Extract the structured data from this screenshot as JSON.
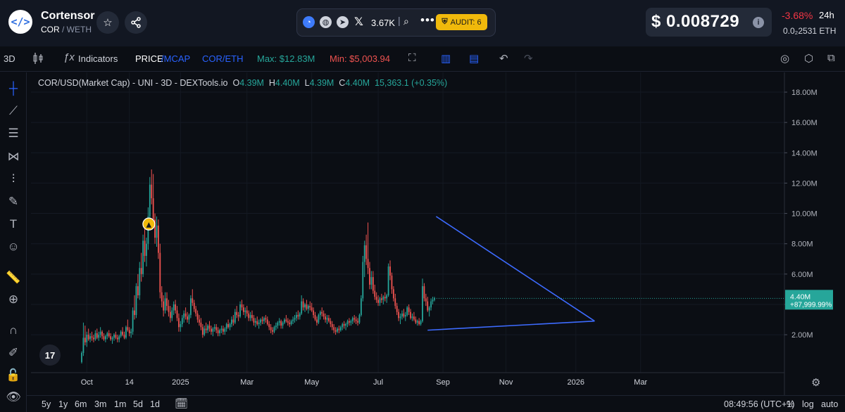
{
  "header": {
    "logo_glyph": "</>",
    "token_name": "Cortensor",
    "token_symbol": "COR",
    "pair_quote": "/ WETH",
    "favorite_icon": "star-icon",
    "share_icon": "share-icon",
    "social": {
      "x_followers": "3.67K",
      "separator": "|"
    },
    "audit_label": "AUDIT: 6",
    "price": "$ 0.008729",
    "price_change": "-3.68%",
    "change_period": "24h",
    "eth_price": "0.0₂2531 ETH"
  },
  "toolbar": {
    "interval": "3D",
    "indicators": "Indicators",
    "price_label": "PRICE",
    "mcap_label": "/MCAP",
    "pair_toggle": "COR/ETH",
    "max_label": "Max: $12.83M",
    "min_label": "Min: $5,003.94"
  },
  "legend": {
    "symbol": "COR/USD(Market Cap) - UNI - 3D - DEXTools.io",
    "o_label": "O",
    "o": "4.39M",
    "h_label": "H",
    "h": "4.40M",
    "l_label": "L",
    "l": "4.39M",
    "c_label": "C",
    "c": "4.40M",
    "extra": "15,363.1 (+0.35%)"
  },
  "last_price_tag": {
    "value": "4.40M",
    "change": "+87,999.99%"
  },
  "colors": {
    "up": "#26a69a",
    "down": "#ef5350",
    "trendline": "#3d6bff",
    "accent": "#2962ff",
    "audit": "#f0b90b"
  },
  "bottom": {
    "ranges": [
      "5y",
      "1y",
      "6m",
      "3m",
      "1m",
      "5d",
      "1d"
    ],
    "clock": "08:49:56 (UTC+1)",
    "percent": "%",
    "log": "log",
    "auto": "auto"
  },
  "chart_data": {
    "type": "candlestick",
    "y_unit": "USD market cap (millions)",
    "y_ticks": [
      "18.00M",
      "16.00M",
      "14.00M",
      "12.00M",
      "10.00M",
      "8.00M",
      "6.00M",
      "4.00M",
      "2.00M"
    ],
    "y_tick_values": [
      18,
      16,
      14,
      12,
      10,
      8,
      6,
      4,
      2
    ],
    "ylim": [
      -0.5,
      19.3
    ],
    "x_ticks": [
      "Oct",
      "14",
      "2025",
      "Mar",
      "May",
      "Jul",
      "Sep",
      "Nov",
      "2026",
      "Mar"
    ],
    "x_tick_index": [
      3,
      28,
      58,
      97,
      135,
      174,
      212,
      249,
      290,
      328
    ],
    "candles_per_tick_note": "",
    "candles": [
      [
        0.2,
        0.9,
        0.1,
        0.8
      ],
      [
        0.8,
        2.8,
        0.6,
        1.8
      ],
      [
        1.8,
        2.6,
        1.3,
        1.5
      ],
      [
        1.5,
        2.2,
        1.2,
        2.0
      ],
      [
        2.0,
        2.4,
        1.6,
        1.7
      ],
      [
        1.7,
        2.1,
        1.5,
        1.9
      ],
      [
        1.9,
        2.2,
        1.6,
        1.8
      ],
      [
        1.8,
        2.0,
        1.5,
        1.7
      ],
      [
        1.7,
        2.3,
        1.6,
        2.1
      ],
      [
        2.1,
        2.4,
        1.7,
        1.8
      ],
      [
        1.8,
        2.2,
        1.6,
        2.0
      ],
      [
        2.0,
        2.5,
        1.8,
        2.2
      ],
      [
        2.2,
        2.3,
        1.7,
        1.9
      ],
      [
        1.9,
        2.1,
        1.6,
        1.7
      ],
      [
        1.7,
        2.0,
        1.5,
        1.9
      ],
      [
        1.9,
        2.2,
        1.7,
        2.1
      ],
      [
        2.1,
        2.3,
        1.8,
        1.9
      ],
      [
        1.9,
        2.1,
        1.6,
        1.7
      ],
      [
        1.7,
        1.9,
        1.4,
        1.8
      ],
      [
        1.8,
        2.1,
        1.6,
        2.0
      ],
      [
        2.0,
        2.2,
        1.7,
        1.8
      ],
      [
        1.8,
        2.0,
        1.5,
        1.7
      ],
      [
        1.7,
        2.0,
        1.5,
        1.9
      ],
      [
        1.9,
        2.3,
        1.8,
        2.2
      ],
      [
        2.2,
        2.5,
        1.9,
        2.0
      ],
      [
        2.0,
        2.2,
        1.7,
        1.8
      ],
      [
        1.8,
        2.6,
        1.7,
        2.5
      ],
      [
        2.5,
        3.0,
        2.2,
        2.3
      ],
      [
        2.3,
        2.5,
        1.9,
        2.1
      ],
      [
        2.1,
        2.4,
        1.8,
        2.2
      ],
      [
        2.2,
        3.8,
        2.0,
        3.6
      ],
      [
        3.6,
        4.6,
        3.0,
        3.3
      ],
      [
        3.3,
        5.4,
        3.1,
        5.2
      ],
      [
        5.2,
        6.0,
        4.4,
        4.6
      ],
      [
        4.6,
        6.8,
        4.3,
        6.4
      ],
      [
        6.4,
        7.4,
        5.5,
        6.0
      ],
      [
        6.0,
        8.6,
        5.8,
        8.2
      ],
      [
        8.2,
        9.0,
        6.8,
        7.2
      ],
      [
        7.2,
        8.4,
        6.5,
        8.0
      ],
      [
        8.0,
        10.4,
        7.6,
        9.8
      ],
      [
        9.8,
        12.4,
        9.0,
        11.9
      ],
      [
        11.9,
        12.9,
        10.6,
        11.0
      ],
      [
        11.0,
        12.6,
        9.2,
        9.6
      ],
      [
        9.6,
        10.0,
        8.0,
        8.4
      ],
      [
        8.4,
        9.8,
        7.8,
        9.2
      ],
      [
        9.2,
        9.6,
        7.0,
        7.4
      ],
      [
        7.4,
        8.0,
        4.4,
        4.8
      ],
      [
        4.8,
        5.2,
        3.8,
        4.2
      ],
      [
        4.2,
        4.6,
        3.2,
        3.6
      ],
      [
        3.6,
        4.8,
        3.4,
        4.4
      ],
      [
        4.4,
        4.8,
        3.6,
        3.9
      ],
      [
        3.9,
        4.3,
        3.2,
        3.5
      ],
      [
        3.5,
        3.9,
        2.8,
        3.1
      ],
      [
        3.1,
        3.8,
        2.9,
        3.6
      ],
      [
        3.6,
        4.2,
        3.3,
        4.0
      ],
      [
        4.0,
        4.3,
        3.4,
        3.6
      ],
      [
        3.6,
        3.9,
        2.9,
        3.1
      ],
      [
        3.1,
        3.4,
        2.2,
        2.5
      ],
      [
        2.5,
        2.9,
        2.2,
        2.7
      ],
      [
        2.7,
        3.3,
        2.5,
        3.1
      ],
      [
        3.1,
        3.6,
        2.8,
        3.4
      ],
      [
        3.4,
        3.8,
        3.0,
        3.2
      ],
      [
        3.2,
        3.5,
        2.8,
        3.0
      ],
      [
        3.0,
        3.4,
        2.7,
        3.3
      ],
      [
        3.3,
        4.6,
        3.1,
        4.4
      ],
      [
        4.4,
        5.0,
        3.9,
        4.1
      ],
      [
        4.1,
        4.3,
        3.5,
        3.7
      ],
      [
        3.7,
        3.9,
        3.2,
        3.4
      ],
      [
        3.4,
        3.6,
        2.8,
        3.0
      ],
      [
        3.0,
        3.3,
        2.6,
        2.8
      ],
      [
        2.8,
        3.1,
        2.3,
        2.5
      ],
      [
        2.5,
        2.7,
        1.8,
        2.0
      ],
      [
        2.0,
        2.6,
        1.9,
        2.4
      ],
      [
        2.4,
        2.8,
        2.1,
        2.3
      ],
      [
        2.3,
        2.7,
        2.1,
        2.6
      ],
      [
        2.6,
        2.9,
        2.2,
        2.4
      ],
      [
        2.4,
        2.6,
        2.0,
        2.2
      ],
      [
        2.2,
        2.5,
        1.9,
        2.4
      ],
      [
        2.4,
        2.7,
        2.2,
        2.5
      ],
      [
        2.5,
        2.7,
        2.1,
        2.3
      ],
      [
        2.3,
        2.5,
        1.9,
        2.1
      ],
      [
        2.1,
        2.4,
        1.9,
        2.3
      ],
      [
        2.3,
        2.6,
        2.1,
        2.4
      ],
      [
        2.4,
        2.6,
        2.0,
        2.2
      ],
      [
        2.2,
        2.5,
        2.0,
        2.4
      ],
      [
        2.4,
        2.8,
        2.2,
        2.7
      ],
      [
        2.7,
        3.0,
        2.4,
        2.5
      ],
      [
        2.5,
        2.8,
        2.3,
        2.7
      ],
      [
        2.7,
        3.2,
        2.5,
        3.0
      ],
      [
        3.0,
        3.3,
        2.6,
        2.8
      ],
      [
        2.8,
        3.7,
        2.7,
        3.5
      ],
      [
        3.5,
        3.9,
        3.1,
        3.3
      ],
      [
        3.3,
        3.5,
        2.9,
        3.2
      ],
      [
        3.2,
        4.2,
        3.1,
        4.0
      ],
      [
        4.0,
        4.3,
        3.6,
        3.8
      ],
      [
        3.8,
        4.0,
        3.3,
        3.5
      ],
      [
        3.5,
        3.8,
        3.1,
        3.6
      ],
      [
        3.6,
        3.9,
        3.2,
        3.4
      ],
      [
        3.4,
        3.6,
        2.9,
        3.1
      ],
      [
        3.1,
        3.5,
        2.9,
        3.3
      ],
      [
        3.3,
        3.6,
        2.9,
        3.1
      ],
      [
        3.1,
        3.3,
        2.6,
        2.8
      ],
      [
        2.8,
        3.1,
        2.5,
        2.9
      ],
      [
        2.9,
        3.2,
        2.6,
        2.7
      ],
      [
        2.7,
        3.0,
        2.4,
        2.8
      ],
      [
        2.8,
        3.1,
        2.6,
        3.0
      ],
      [
        3.0,
        3.2,
        2.7,
        2.9
      ],
      [
        2.9,
        3.2,
        2.7,
        3.1
      ],
      [
        3.1,
        3.3,
        2.8,
        3.0
      ],
      [
        3.0,
        3.2,
        2.6,
        2.7
      ],
      [
        2.7,
        2.9,
        2.3,
        2.5
      ],
      [
        2.5,
        2.7,
        2.1,
        2.3
      ],
      [
        2.3,
        2.5,
        2.0,
        2.2
      ],
      [
        2.2,
        2.6,
        2.1,
        2.5
      ],
      [
        2.5,
        2.8,
        2.3,
        2.6
      ],
      [
        2.6,
        2.9,
        2.4,
        2.8
      ],
      [
        2.8,
        3.1,
        2.6,
        2.9
      ],
      [
        2.9,
        3.0,
        2.4,
        2.6
      ],
      [
        2.6,
        2.9,
        2.4,
        2.8
      ],
      [
        2.8,
        3.1,
        2.7,
        3.0
      ],
      [
        3.0,
        3.3,
        2.8,
        2.9
      ],
      [
        2.9,
        3.1,
        2.6,
        2.8
      ],
      [
        2.8,
        3.0,
        2.5,
        2.7
      ],
      [
        2.7,
        3.0,
        2.6,
        2.9
      ],
      [
        2.9,
        3.2,
        2.7,
        3.0
      ],
      [
        3.0,
        3.3,
        2.8,
        3.1
      ],
      [
        3.1,
        3.5,
        2.9,
        3.3
      ],
      [
        3.3,
        3.6,
        3.0,
        3.2
      ],
      [
        3.2,
        3.5,
        3.0,
        3.4
      ],
      [
        3.4,
        4.6,
        3.3,
        4.2
      ],
      [
        4.2,
        4.4,
        3.6,
        3.8
      ],
      [
        3.8,
        4.1,
        3.5,
        4.0
      ],
      [
        4.0,
        4.3,
        3.6,
        3.7
      ],
      [
        3.7,
        4.0,
        3.4,
        3.9
      ],
      [
        3.9,
        4.2,
        3.6,
        3.8
      ],
      [
        3.8,
        4.1,
        3.5,
        3.6
      ],
      [
        3.6,
        3.8,
        3.1,
        3.3
      ],
      [
        3.3,
        3.5,
        2.9,
        3.0
      ],
      [
        3.0,
        3.2,
        2.6,
        2.8
      ],
      [
        2.8,
        3.4,
        2.7,
        3.3
      ],
      [
        3.3,
        3.6,
        3.0,
        3.5
      ],
      [
        3.5,
        3.8,
        3.2,
        3.4
      ],
      [
        3.4,
        3.6,
        3.0,
        3.2
      ],
      [
        3.2,
        3.4,
        2.8,
        3.0
      ],
      [
        3.0,
        3.3,
        2.7,
        3.1
      ],
      [
        3.1,
        3.3,
        2.8,
        2.9
      ],
      [
        2.9,
        3.1,
        2.5,
        2.7
      ],
      [
        2.7,
        2.9,
        2.3,
        2.5
      ],
      [
        2.5,
        2.7,
        2.1,
        2.3
      ],
      [
        2.3,
        2.5,
        2.0,
        2.2
      ],
      [
        2.2,
        2.5,
        2.1,
        2.4
      ],
      [
        2.4,
        2.6,
        2.1,
        2.3
      ],
      [
        2.3,
        2.6,
        2.2,
        2.5
      ],
      [
        2.5,
        2.8,
        2.3,
        2.7
      ],
      [
        2.7,
        2.9,
        2.4,
        2.6
      ],
      [
        2.6,
        2.8,
        2.3,
        2.7
      ],
      [
        2.7,
        3.0,
        2.5,
        2.9
      ],
      [
        2.9,
        3.1,
        2.6,
        2.8
      ],
      [
        2.8,
        3.0,
        2.6,
        2.9
      ],
      [
        2.9,
        3.2,
        2.7,
        3.1
      ],
      [
        3.1,
        3.3,
        2.8,
        3.0
      ],
      [
        3.0,
        3.2,
        2.7,
        2.9
      ],
      [
        2.9,
        3.1,
        2.6,
        2.8
      ],
      [
        2.8,
        3.4,
        2.7,
        3.3
      ],
      [
        3.3,
        4.6,
        3.2,
        4.4
      ],
      [
        4.4,
        7.2,
        4.2,
        6.8
      ],
      [
        6.8,
        8.2,
        5.8,
        7.9
      ],
      [
        7.9,
        8.6,
        6.6,
        7.0
      ],
      [
        7.0,
        9.4,
        6.0,
        6.4
      ],
      [
        6.4,
        6.8,
        5.0,
        5.3
      ],
      [
        5.3,
        6.2,
        5.0,
        5.8
      ],
      [
        5.8,
        6.2,
        4.7,
        4.9
      ],
      [
        4.9,
        5.3,
        4.3,
        4.5
      ],
      [
        4.5,
        4.8,
        4.1,
        4.3
      ],
      [
        4.3,
        4.6,
        3.9,
        4.1
      ],
      [
        4.1,
        4.5,
        3.9,
        4.4
      ],
      [
        4.4,
        4.7,
        4.1,
        4.3
      ],
      [
        4.3,
        4.6,
        4.0,
        4.5
      ],
      [
        4.5,
        4.8,
        4.2,
        4.4
      ],
      [
        4.4,
        4.7,
        4.1,
        4.6
      ],
      [
        4.6,
        6.7,
        4.5,
        6.5
      ],
      [
        6.5,
        6.9,
        5.6,
        5.9
      ],
      [
        5.9,
        6.1,
        4.7,
        5.0
      ],
      [
        5.0,
        5.2,
        4.2,
        4.4
      ],
      [
        4.4,
        4.7,
        3.7,
        3.9
      ],
      [
        3.9,
        4.1,
        3.3,
        3.5
      ],
      [
        3.5,
        3.7,
        2.9,
        3.1
      ],
      [
        3.1,
        3.4,
        2.7,
        3.2
      ],
      [
        3.2,
        3.6,
        3.0,
        3.4
      ],
      [
        3.4,
        3.7,
        3.1,
        3.2
      ],
      [
        3.2,
        3.5,
        2.9,
        3.3
      ],
      [
        3.3,
        3.9,
        3.2,
        3.8
      ],
      [
        3.8,
        4.0,
        3.3,
        3.5
      ],
      [
        3.5,
        3.7,
        3.0,
        3.1
      ],
      [
        3.1,
        3.4,
        2.9,
        3.2
      ],
      [
        3.2,
        3.5,
        2.9,
        3.0
      ],
      [
        3.0,
        3.2,
        2.7,
        2.8
      ],
      [
        2.8,
        3.0,
        2.6,
        2.9
      ],
      [
        2.9,
        3.1,
        2.6,
        2.7
      ],
      [
        2.7,
        3.0,
        2.6,
        2.9
      ],
      [
        2.9,
        5.7,
        2.8,
        5.2
      ],
      [
        5.2,
        5.4,
        4.2,
        4.4
      ],
      [
        4.4,
        4.7,
        3.9,
        4.2
      ],
      [
        4.2,
        4.5,
        3.5,
        3.6
      ],
      [
        3.6,
        3.9,
        3.2,
        3.8
      ],
      [
        3.8,
        4.4,
        3.6,
        4.2
      ],
      [
        4.2,
        4.5,
        4.0,
        4.3
      ],
      [
        4.3,
        4.5,
        4.2,
        4.4
      ]
    ],
    "trendlines": [
      {
        "from": [
          208,
          9.8
        ],
        "to": [
          301,
          2.9
        ]
      },
      {
        "from": [
          203,
          2.3
        ],
        "to": [
          301,
          2.9
        ]
      }
    ],
    "last_value": 4.4
  }
}
